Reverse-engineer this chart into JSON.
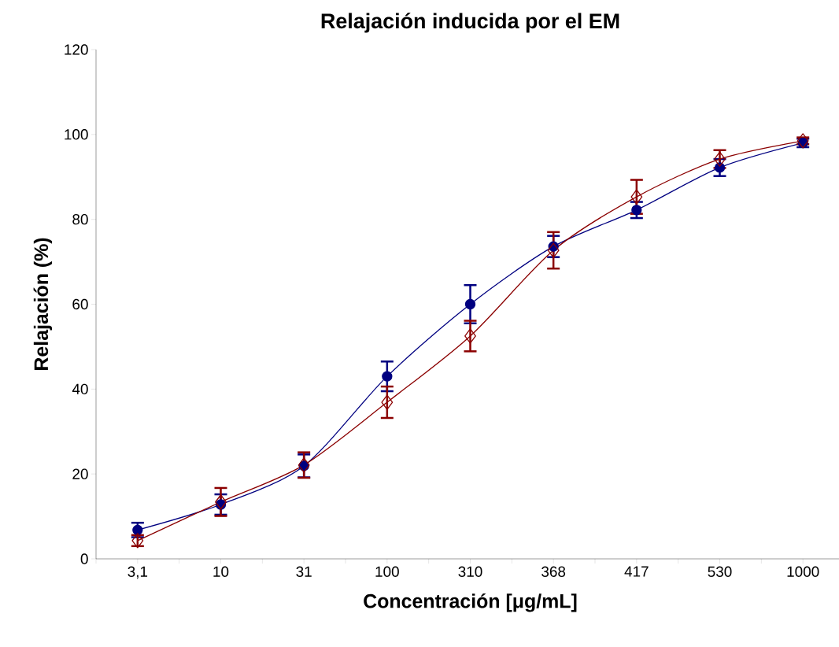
{
  "chart_data": {
    "type": "line",
    "title": "Relajación inducida por el EM",
    "xlabel": "Concentración [μg/mL]",
    "ylabel": "Relajación (%)",
    "categories": [
      "3,1",
      "10",
      "31",
      "100",
      "310",
      "368",
      "417",
      "530",
      "1000"
    ],
    "series": [
      {
        "color": "#000080",
        "marker": "circle",
        "values": [
          6.8,
          12.8,
          21.9,
          43.0,
          60.0,
          73.6,
          82.2,
          92.2,
          98.0
        ],
        "errors": [
          1.7,
          2.4,
          2.7,
          3.5,
          4.5,
          2.5,
          1.9,
          2.0,
          1.0
        ]
      },
      {
        "color": "#8b0000",
        "marker": "diamond",
        "values": [
          4.3,
          13.4,
          22.1,
          36.9,
          52.5,
          72.7,
          85.3,
          94.2,
          98.5
        ],
        "errors": [
          1.3,
          3.3,
          3.0,
          3.7,
          3.6,
          4.3,
          4.0,
          2.1,
          0.8
        ]
      }
    ],
    "ylim": [
      0,
      120
    ],
    "yticks": [
      0,
      20,
      40,
      60,
      80,
      100,
      120
    ],
    "grid": false
  }
}
